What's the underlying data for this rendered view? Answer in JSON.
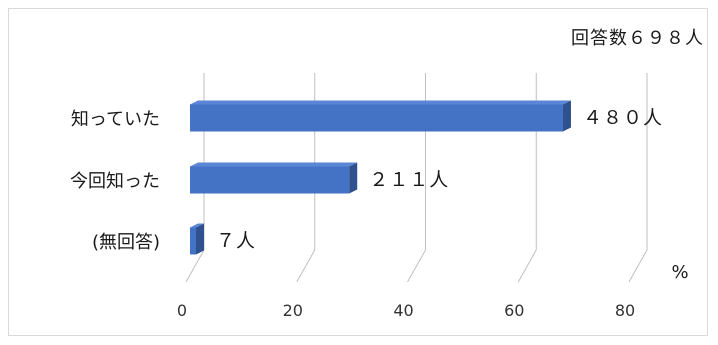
{
  "chart_data": {
    "type": "bar",
    "orientation": "horizontal",
    "style": "3d",
    "respondents_note": "回答数６９８人",
    "categories": [
      "知っていた",
      "今回知った",
      "(無回答)"
    ],
    "values": [
      68.8,
      30.2,
      1.0
    ],
    "data_labels": [
      "４８０人",
      "２１１人",
      "７人"
    ],
    "xlim": [
      0,
      80
    ],
    "x_ticks": [
      "0",
      "20",
      "40",
      "60",
      "80"
    ],
    "unit_label": "%",
    "grid": true,
    "bar_color": "#4472c4"
  }
}
